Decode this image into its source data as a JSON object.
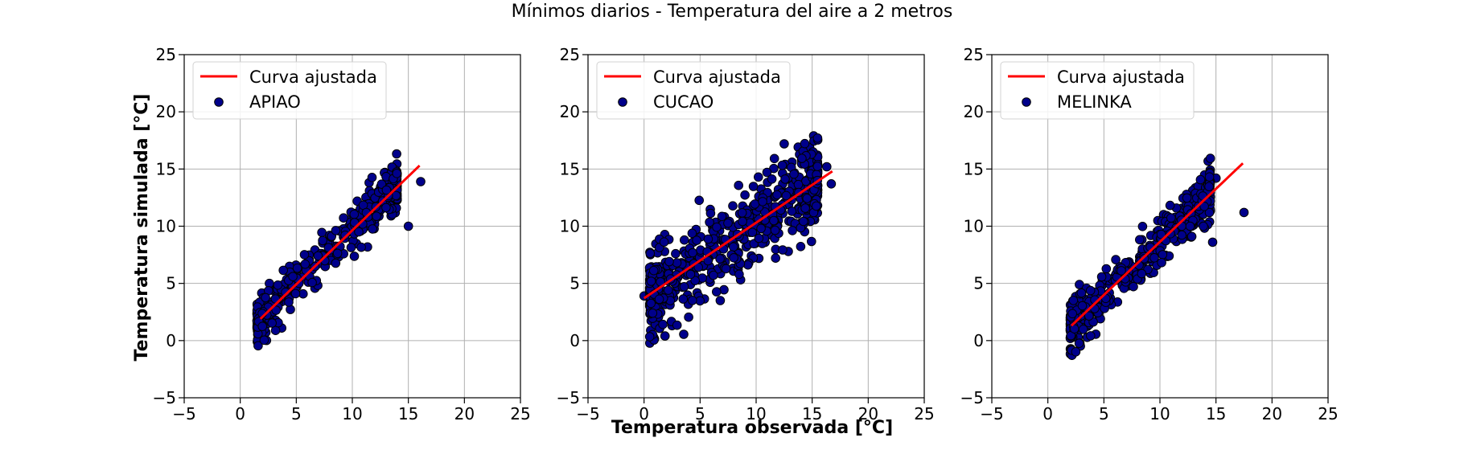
{
  "figure": {
    "suptitle": "Mínimos diarios - Temperatura del aire a 2 metros",
    "ylabel": "Temperatura simulada [°C]",
    "xlabel": "Temperatura observada [°C]"
  },
  "colors": {
    "fit_line": "#ff0000",
    "points_fill": "#00008b",
    "points_edge": "#000000",
    "grid": "#b0b0b0"
  },
  "chart_data": [
    {
      "type": "scatter",
      "station": "APIAO",
      "legend": [
        "Curva ajustada",
        "APIAO"
      ],
      "xlim": [
        -5,
        25
      ],
      "ylim": [
        -5,
        25
      ],
      "xticks": [
        -5,
        0,
        5,
        10,
        15,
        20,
        25
      ],
      "yticks": [
        -5,
        0,
        5,
        10,
        15,
        20,
        25
      ],
      "grid": true,
      "legend_position": "upper-left",
      "fit_line": {
        "x": [
          1.8,
          16.0
        ],
        "y": [
          1.9,
          15.3
        ]
      },
      "cloud": {
        "x_range": [
          1.5,
          14.0
        ],
        "slope": 0.95,
        "intercept": 0.3,
        "spread": 1.0,
        "count": 420
      },
      "points": [
        [
          1.5,
          1.7
        ],
        [
          3.7,
          1.1
        ],
        [
          15.0,
          10.0
        ],
        [
          16.1,
          13.9
        ],
        [
          12.9,
          14.7
        ],
        [
          2.6,
          5.0
        ],
        [
          11.5,
          13.8
        ]
      ]
    },
    {
      "type": "scatter",
      "station": "CUCAO",
      "legend": [
        "Curva ajustada",
        "CUCAO"
      ],
      "xlim": [
        -5,
        25
      ],
      "ylim": [
        -5,
        25
      ],
      "xticks": [
        -5,
        0,
        5,
        10,
        15,
        20,
        25
      ],
      "yticks": [
        -5,
        0,
        5,
        10,
        15,
        20,
        25
      ],
      "grid": true,
      "legend_position": "upper-left",
      "fit_line": {
        "x": [
          0.0,
          16.8
        ],
        "y": [
          3.7,
          14.8
        ]
      },
      "cloud": {
        "x_range": [
          0.5,
          15.5
        ],
        "slope": 0.66,
        "intercept": 3.7,
        "spread": 1.9,
        "count": 600
      },
      "points": [
        [
          0.0,
          3.9
        ],
        [
          2.5,
          1.3
        ],
        [
          6.8,
          3.5
        ],
        [
          16.7,
          13.7
        ],
        [
          16.3,
          15.2
        ],
        [
          13.2,
          15.6
        ],
        [
          10.2,
          14.3
        ]
      ]
    },
    {
      "type": "scatter",
      "station": "MELINKA",
      "legend": [
        "Curva ajustada",
        "MELINKA"
      ],
      "xlim": [
        -5,
        25
      ],
      "ylim": [
        -5,
        25
      ],
      "xticks": [
        -5,
        0,
        5,
        10,
        15,
        20,
        25
      ],
      "yticks": [
        -5,
        0,
        5,
        10,
        15,
        20,
        25
      ],
      "grid": true,
      "legend_position": "upper-left",
      "fit_line": {
        "x": [
          2.1,
          17.4
        ],
        "y": [
          1.3,
          15.5
        ]
      },
      "cloud": {
        "x_range": [
          2.0,
          14.5
        ],
        "slope": 0.93,
        "intercept": -0.6,
        "spread": 1.1,
        "count": 450
      },
      "points": [
        [
          2.7,
          0.3
        ],
        [
          17.5,
          11.2
        ],
        [
          14.7,
          8.6
        ],
        [
          15.0,
          14.2
        ],
        [
          14.2,
          14.0
        ],
        [
          2.0,
          2.0
        ],
        [
          13.0,
          10.1
        ]
      ]
    }
  ]
}
